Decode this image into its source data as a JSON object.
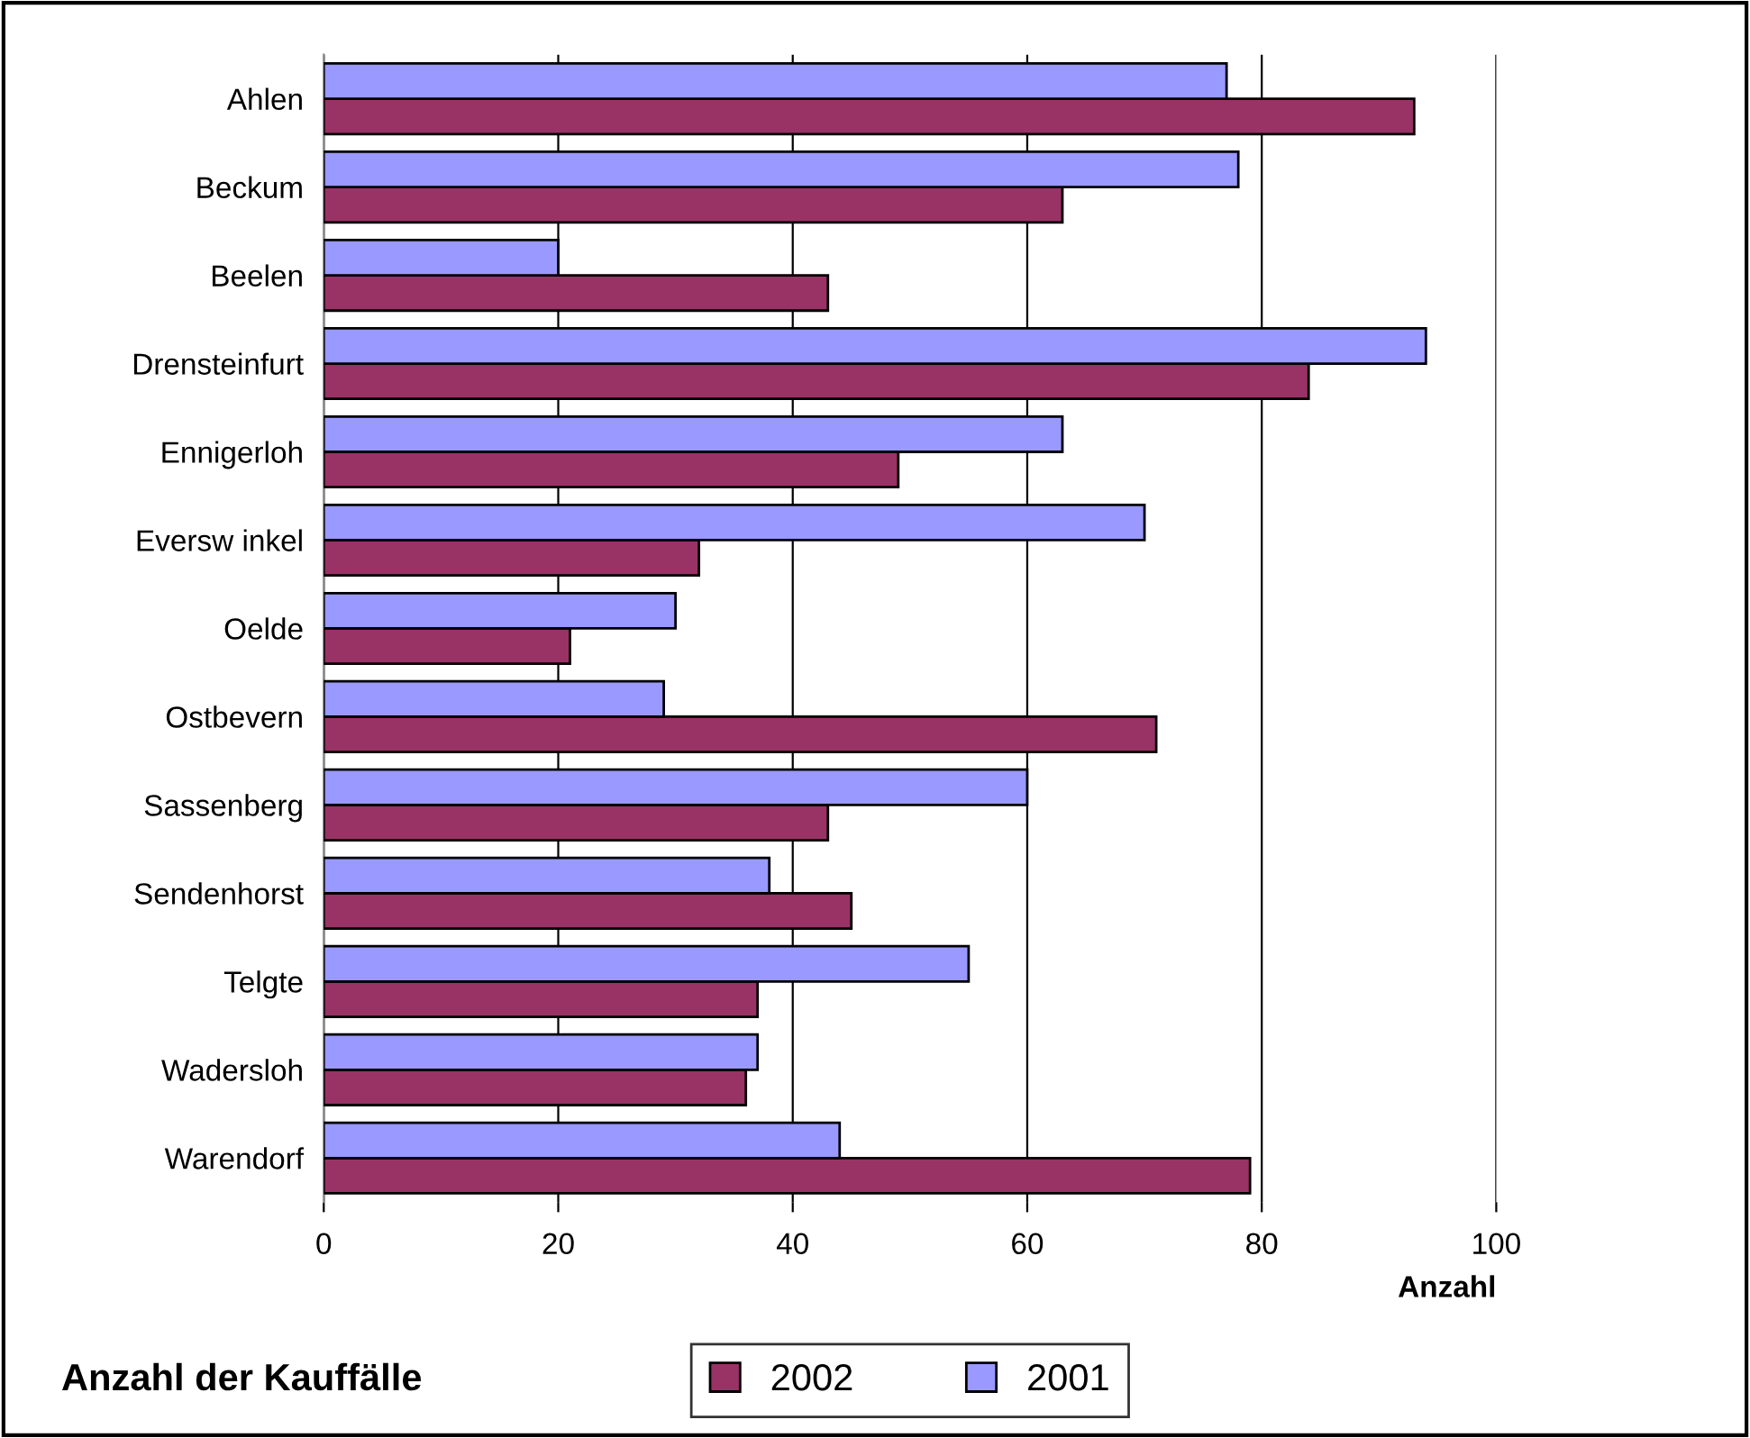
{
  "chart_data": {
    "type": "bar",
    "orientation": "horizontal",
    "title": "Anzahl der Kauffälle",
    "xlabel": "Anzahl",
    "categories": [
      "Ahlen",
      "Beckum",
      "Beelen",
      "Drensteinfurt",
      "Ennigerloh",
      "Eversw inkel",
      "Oelde",
      "Ostbevern",
      "Sassenberg",
      "Sendenhorst",
      "Telgte",
      "Wadersloh",
      "Warendorf"
    ],
    "series": [
      {
        "name": "2002",
        "color": "#993366",
        "values": [
          93,
          63,
          43,
          84,
          49,
          32,
          21,
          71,
          43,
          45,
          37,
          36,
          79
        ]
      },
      {
        "name": "2001",
        "color": "#9999ff",
        "values": [
          77,
          78,
          20,
          94,
          63,
          70,
          30,
          29,
          60,
          38,
          55,
          37,
          44
        ]
      }
    ],
    "xlim": [
      0,
      100
    ],
    "xticks": [
      0,
      20,
      40,
      60,
      80,
      100
    ],
    "grid": "x",
    "legend": "bottom"
  }
}
